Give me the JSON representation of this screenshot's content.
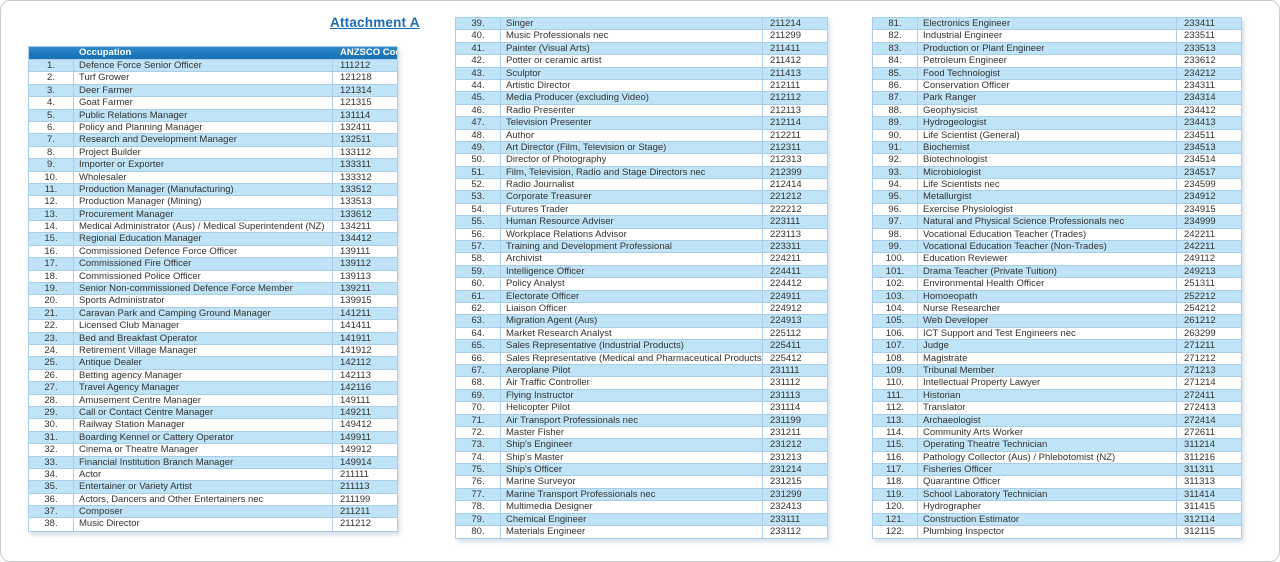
{
  "page": {
    "title": "Attachment A"
  },
  "colors": {
    "header_bg": "#1b74b8",
    "header_text": "#ffffff",
    "row_alt": "#bfe3f7",
    "row_default": "#ffffff",
    "border": "#a9cdea",
    "title_text": "#1c6cb5"
  },
  "table": {
    "headers": {
      "occupation": "Occupation",
      "code": "ANZSCO Code"
    }
  },
  "columns": [
    {
      "name": "rows-1-38",
      "has_header": true,
      "rows": [
        [
          "1.",
          "Defence Force Senior Officer",
          "111212"
        ],
        [
          "2.",
          "Turf Grower",
          "121218"
        ],
        [
          "3.",
          "Deer Farmer",
          "121314"
        ],
        [
          "4.",
          "Goat Farmer",
          "121315"
        ],
        [
          "5.",
          "Public Relations Manager",
          "131114"
        ],
        [
          "6.",
          "Policy and Planning Manager",
          "132411"
        ],
        [
          "7.",
          "Research and Development Manager",
          "132511"
        ],
        [
          "8.",
          "Project Builder",
          "133112"
        ],
        [
          "9.",
          "Importer or Exporter",
          "133311"
        ],
        [
          "10.",
          "Wholesaler",
          "133312"
        ],
        [
          "11.",
          "Production Manager (Manufacturing)",
          "133512"
        ],
        [
          "12.",
          "Production Manager (Mining)",
          "133513"
        ],
        [
          "13.",
          "Procurement Manager",
          "133612"
        ],
        [
          "14.",
          "Medical Administrator (Aus) / Medical Superintendent (NZ)",
          "134211"
        ],
        [
          "15.",
          "Regional Education Manager",
          "134412"
        ],
        [
          "16.",
          "Commissioned Defence Force Officer",
          "139111"
        ],
        [
          "17.",
          "Commissioned Fire Officer",
          "139112"
        ],
        [
          "18.",
          "Commissioned Police Officer",
          "139113"
        ],
        [
          "19.",
          "Senior Non-commissioned Defence Force Member",
          "139211"
        ],
        [
          "20.",
          "Sports Administrator",
          "139915"
        ],
        [
          "21.",
          "Caravan Park and Camping Ground Manager",
          "141211"
        ],
        [
          "22.",
          "Licensed Club Manager",
          "141411"
        ],
        [
          "23.",
          "Bed and Breakfast Operator",
          "141911"
        ],
        [
          "24.",
          "Retirement Village Manager",
          "141912"
        ],
        [
          "25.",
          "Antique Dealer",
          "142112"
        ],
        [
          "26.",
          "Betting agency Manager",
          "142113"
        ],
        [
          "27.",
          "Travel Agency Manager",
          "142116"
        ],
        [
          "28.",
          "Amusement Centre Manager",
          "149111"
        ],
        [
          "29.",
          "Call or Contact Centre Manager",
          "149211"
        ],
        [
          "30.",
          "Railway Station Manager",
          "149412"
        ],
        [
          "31.",
          "Boarding Kennel or Cattery Operator",
          "149911"
        ],
        [
          "32.",
          "Cinema or Theatre Manager",
          "149912"
        ],
        [
          "33.",
          "Financial Institution Branch Manager",
          "149914"
        ],
        [
          "34.",
          "Actor",
          "211111"
        ],
        [
          "35.",
          "Entertainer or Variety Artist",
          "211113"
        ],
        [
          "36.",
          "Actors, Dancers and Other Entertainers nec",
          "211199"
        ],
        [
          "37.",
          "Composer",
          "211211"
        ],
        [
          "38.",
          "Music Director",
          "211212"
        ]
      ]
    },
    {
      "name": "rows-39-80",
      "has_header": false,
      "rows": [
        [
          "39.",
          "Singer",
          "211214"
        ],
        [
          "40.",
          "Music Professionals nec",
          "211299"
        ],
        [
          "41.",
          "Painter (Visual Arts)",
          "211411"
        ],
        [
          "42.",
          "Potter or ceramic artist",
          "211412"
        ],
        [
          "43.",
          "Sculptor",
          "211413"
        ],
        [
          "44.",
          "Artistic Director",
          "212111"
        ],
        [
          "45.",
          "Media Producer (excluding Video)",
          "212112"
        ],
        [
          "46.",
          "Radio Presenter",
          "212113"
        ],
        [
          "47.",
          "Television Presenter",
          "212114"
        ],
        [
          "48.",
          "Author",
          "212211"
        ],
        [
          "49.",
          "Art Director (Film, Television or Stage)",
          "212311"
        ],
        [
          "50.",
          "Director of Photography",
          "212313"
        ],
        [
          "51.",
          "Film, Television, Radio and Stage Directors nec",
          "212399"
        ],
        [
          "52.",
          "Radio Journalist",
          "212414"
        ],
        [
          "53.",
          "Corporate Treasurer",
          "221212"
        ],
        [
          "54.",
          "Futures Trader",
          "222212"
        ],
        [
          "55.",
          "Human Resource Adviser",
          "223111"
        ],
        [
          "56.",
          "Workplace Relations Advisor",
          "223113"
        ],
        [
          "57.",
          "Training and Development Professional",
          "223311"
        ],
        [
          "58.",
          "Archivist",
          "224211"
        ],
        [
          "59.",
          "Intelligence Officer",
          "224411"
        ],
        [
          "60.",
          "Policy Analyst",
          "224412"
        ],
        [
          "61.",
          "Electorate Officer",
          "224911"
        ],
        [
          "62.",
          "Liaison Officer",
          "224912"
        ],
        [
          "63.",
          "Migration Agent (Aus)",
          "224913"
        ],
        [
          "64.",
          "Market Research Analyst",
          "225112"
        ],
        [
          "65.",
          "Sales Representative (Industrial Products)",
          "225411"
        ],
        [
          "66.",
          "Sales Representative (Medical and Pharmaceutical Products)",
          "225412"
        ],
        [
          "67.",
          "Aeroplane Pilot",
          "231111"
        ],
        [
          "68.",
          "Air Traffic Controller",
          "231112"
        ],
        [
          "69.",
          "Flying Instructor",
          "231113"
        ],
        [
          "70.",
          "Helicopter Pilot",
          "231114"
        ],
        [
          "71.",
          "Air Transport Professionals nec",
          "231199"
        ],
        [
          "72.",
          "Master Fisher",
          "231211"
        ],
        [
          "73.",
          "Ship's Engineer",
          "231212"
        ],
        [
          "74.",
          "Ship's Master",
          "231213"
        ],
        [
          "75.",
          "Ship's Officer",
          "231214"
        ],
        [
          "76.",
          "Marine Surveyor",
          "231215"
        ],
        [
          "77.",
          "Marine Transport Professionals nec",
          "231299"
        ],
        [
          "78.",
          "Multimedia Designer",
          "232413"
        ],
        [
          "79.",
          "Chemical Engineer",
          "233111"
        ],
        [
          "80.",
          "Materials Engineer",
          "233112"
        ]
      ]
    },
    {
      "name": "rows-81-122",
      "has_header": false,
      "rows": [
        [
          "81.",
          "Electronics Engineer",
          "233411"
        ],
        [
          "82.",
          "Industrial Engineer",
          "233511"
        ],
        [
          "83.",
          "Production or Plant Engineer",
          "233513"
        ],
        [
          "84.",
          "Petroleum Engineer",
          "233612"
        ],
        [
          "85.",
          "Food Technologist",
          "234212"
        ],
        [
          "86.",
          "Conservation Officer",
          "234311"
        ],
        [
          "87.",
          "Park Ranger",
          "234314"
        ],
        [
          "88.",
          "Geophysicist",
          "234412"
        ],
        [
          "89.",
          "Hydrogeologist",
          "234413"
        ],
        [
          "90.",
          "Life Scientist (General)",
          "234511"
        ],
        [
          "91.",
          "Biochemist",
          "234513"
        ],
        [
          "92.",
          "Biotechnologist",
          "234514"
        ],
        [
          "93.",
          "Microbiologist",
          "234517"
        ],
        [
          "94.",
          "Life Scientists nec",
          "234599"
        ],
        [
          "95.",
          "Metallurgist",
          "234912"
        ],
        [
          "96.",
          "Exercise Physiologist",
          "234915"
        ],
        [
          "97.",
          "Natural and Physical Science Professionals nec",
          "234999"
        ],
        [
          "98.",
          "Vocational Education Teacher (Trades)",
          "242211"
        ],
        [
          "99.",
          "Vocational Education Teacher (Non-Trades)",
          "242211"
        ],
        [
          "100.",
          "Education Reviewer",
          "249112"
        ],
        [
          "101.",
          "Drama Teacher (Private Tuition)",
          "249213"
        ],
        [
          "102.",
          "Environmental Health Officer",
          "251311"
        ],
        [
          "103.",
          "Homoeopath",
          "252212"
        ],
        [
          "104.",
          "Nurse Researcher",
          "254212"
        ],
        [
          "105.",
          "Web Developer",
          "261212"
        ],
        [
          "106.",
          "ICT Support and Test Engineers nec",
          "263299"
        ],
        [
          "107.",
          "Judge",
          "271211"
        ],
        [
          "108.",
          "Magistrate",
          "271212"
        ],
        [
          "109.",
          "Tribunal Member",
          "271213"
        ],
        [
          "110.",
          "Intellectual Property Lawyer",
          "271214"
        ],
        [
          "111.",
          "Historian",
          "272411"
        ],
        [
          "112.",
          "Translator",
          "272413"
        ],
        [
          "113.",
          "Archaeologist",
          "272414"
        ],
        [
          "114.",
          "Community Arts Worker",
          "272611"
        ],
        [
          "115.",
          "Operating Theatre Technician",
          "311214"
        ],
        [
          "116.",
          "Pathology Collector (Aus) / Phlebotomist (NZ)",
          "311216"
        ],
        [
          "117.",
          "Fisheries Officer",
          "311311"
        ],
        [
          "118.",
          "Quarantine Officer",
          "311313"
        ],
        [
          "119.",
          "School Laboratory Technician",
          "311414"
        ],
        [
          "120.",
          "Hydrographer",
          "311415"
        ],
        [
          "121.",
          "Construction Estimator",
          "312114"
        ],
        [
          "122.",
          "Plumbing Inspector",
          "312115"
        ]
      ]
    }
  ]
}
